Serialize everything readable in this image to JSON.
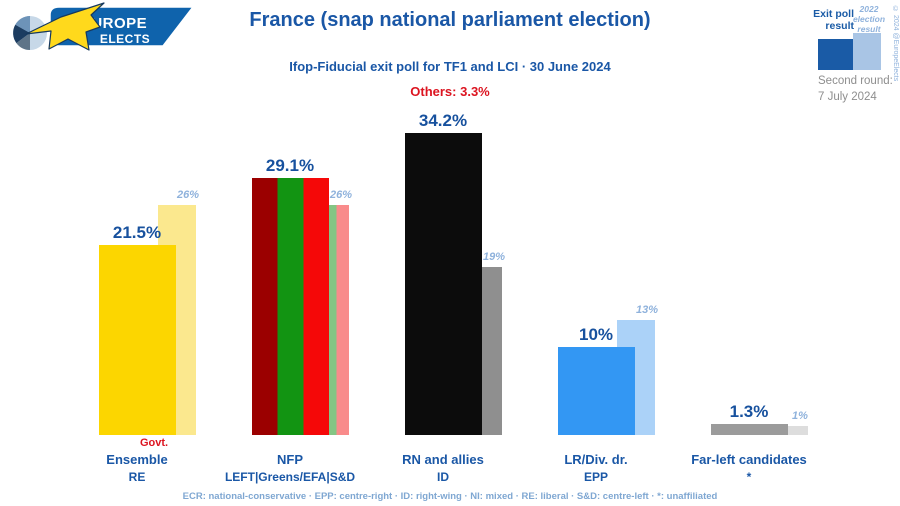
{
  "colors": {
    "title-blue": "#1A57A6",
    "value-blue": "#17519E",
    "soft-blue": "#8FB2DC",
    "red": "#DC1420",
    "gray-text": "#8E8E8E",
    "footer-blue": "#7FA7D2",
    "legend-dark": "#1A5BA6",
    "legend-light": "#A9C5E5",
    "logo-banner": "#0F63AC",
    "logo-star": "#FFD91C"
  },
  "logo": {
    "line1": "EUROPE",
    "line2": "ELECTS"
  },
  "header": {
    "title": "France (snap national parliament election)",
    "subtitle": "Ifop-Fiducial exit poll for TF1 and LCI · 30 June 2024",
    "others_label": "Others:",
    "others_value": "3.3%"
  },
  "legend": {
    "exit_poll_label": "Exit poll result",
    "prev_label": "2022 election result",
    "second_round_label": "Second round:",
    "second_round_date": "7 July 2024",
    "copyright": "© 2024 @EuropeElects"
  },
  "chart_data": {
    "type": "bar",
    "title": "France (snap national parliament election)",
    "subtitle": "Ifop-Fiducial exit poll for TF1 and LCI · 30 June 2024",
    "unit": "%",
    "others_value": 3.3,
    "ylim": [
      0,
      36
    ],
    "grid": false,
    "legend_position": "top-right",
    "series": [
      {
        "name": "Exit poll result"
      },
      {
        "name": "2022 election result"
      }
    ],
    "categories": [
      {
        "party": "Ensemble",
        "eu_group": "RE",
        "note": "Govt.",
        "exit_poll": 21.5,
        "exit_poll_label": "21.5%",
        "prev_2022": 26,
        "prev_label": "26%",
        "bar_colors": [
          "#FCD600"
        ],
        "prev_bar_colors": [
          "#FBE88E"
        ]
      },
      {
        "party": "NFP",
        "eu_group": "LEFT|Greens/EFA|S&D",
        "exit_poll": 29.1,
        "exit_poll_label": "29.1%",
        "prev_2022": 26,
        "prev_label": "26%",
        "bar_colors": [
          "#9B0000",
          "#129412",
          "#F50808"
        ],
        "prev_bar_colors": [
          "#D08A8A",
          "#84C584",
          "#F98B8B"
        ]
      },
      {
        "party": "RN and allies",
        "eu_group": "ID",
        "exit_poll": 34.2,
        "exit_poll_label": "34.2%",
        "prev_2022": 19,
        "prev_label": "19%",
        "bar_colors": [
          "#0C0C0C"
        ],
        "prev_bar_colors": [
          "#8F8F8F"
        ]
      },
      {
        "party": "LR/Div. dr.",
        "eu_group": "EPP",
        "exit_poll": 10,
        "exit_poll_label": "10%",
        "prev_2022": 13,
        "prev_label": "13%",
        "bar_colors": [
          "#3397F3"
        ],
        "prev_bar_colors": [
          "#ABD2F8"
        ]
      },
      {
        "party": "Far-left candidates",
        "eu_group": "*",
        "exit_poll": 1.3,
        "exit_poll_label": "1.3%",
        "prev_2022": 1,
        "prev_label": "1%",
        "bar_colors": [
          "#9B9B9B"
        ],
        "prev_bar_colors": [
          "#DDDDDD"
        ]
      }
    ]
  },
  "footer": {
    "text": "ECR: national-conservative · EPP: centre-right · ID: right-wing · NI: mixed · RE: liberal · S&D: centre-left · *: unaffiliated"
  }
}
